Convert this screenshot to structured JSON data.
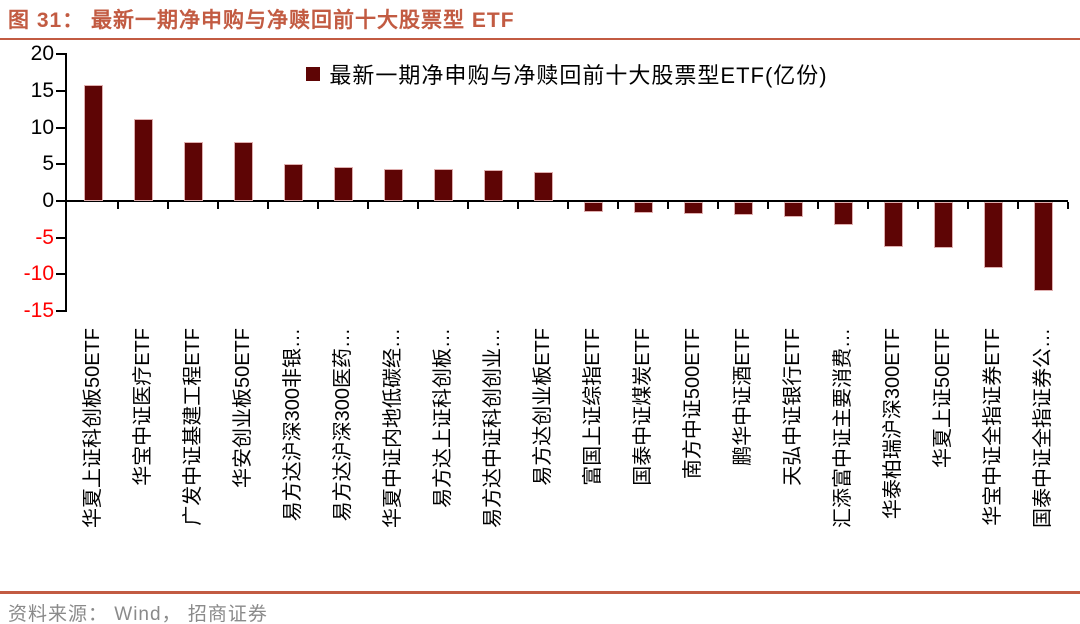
{
  "page": {
    "title": "图 31： 最新一期净申购与净赎回前十大股票型 ETF",
    "source": "资料来源： Wind， 招商证券"
  },
  "colors": {
    "accent_brick": "#C25B42",
    "bar_fill": "#5E0505",
    "bar_edge": "#DFAFAF",
    "positive_axis_label": "#000000",
    "negative_axis_label": "#FF0000"
  },
  "chart_data": {
    "type": "bar",
    "legend": "最新一期净申购与净赎回前十大股票型ETF(亿份)",
    "value_unit": "亿份",
    "categories": [
      "华夏上证科创板50ETF",
      "华宝中证医疗ETF",
      "广发中证基建工程ETF",
      "华安创业板50ETF",
      "易方达沪深300非银…",
      "易方达沪深300医药…",
      "华夏中证内地低碳经…",
      "易方达上证科创板…",
      "易方达中证科创创业…",
      "易方达创业板ETF",
      "富国上证综指ETF",
      "国泰中证煤炭ETF",
      "南方中证500ETF",
      "鹏华中证酒ETF",
      "天弘中证银行ETF",
      "汇添富中证主要消费…",
      "华泰柏瑞沪深300ETF",
      "华夏上证50ETF",
      "华宝中证全指证券ETF",
      "国泰中证全指证券公…"
    ],
    "values": [
      15.8,
      11.2,
      8.1,
      8.0,
      5.0,
      4.7,
      4.4,
      4.3,
      4.2,
      3.9,
      -1.3,
      -1.5,
      -1.6,
      -1.8,
      -2.0,
      -3.2,
      -6.1,
      -6.3,
      -9.0,
      -12.1
    ],
    "ylim": [
      -15,
      20
    ],
    "yticks": [
      20,
      15,
      10,
      5,
      0,
      -5,
      -10,
      -15
    ],
    "grid": false,
    "legend_position": "top-center"
  }
}
